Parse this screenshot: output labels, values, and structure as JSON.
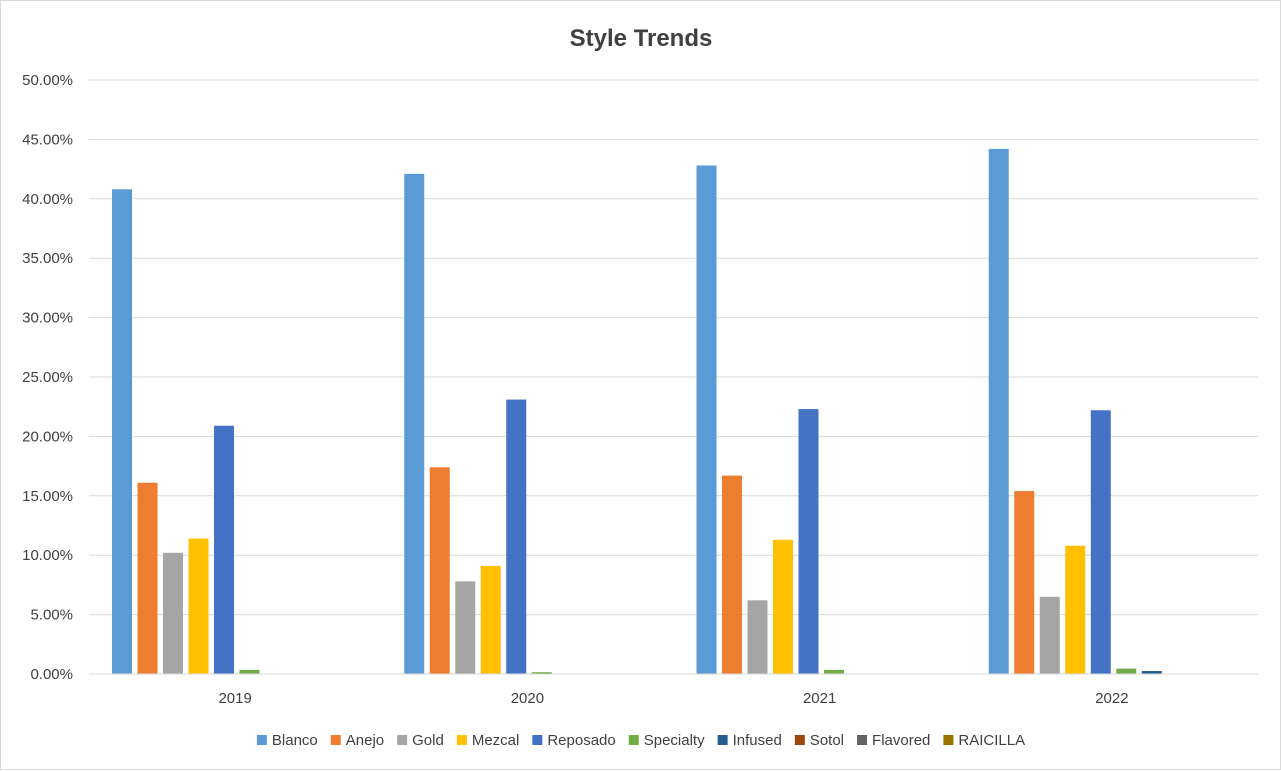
{
  "chart_data": {
    "type": "bar",
    "title": "Style Trends",
    "xlabel": "",
    "ylabel": "",
    "categories": [
      "2019",
      "2020",
      "2021",
      "2022"
    ],
    "ylim": [
      0,
      50
    ],
    "y_tick_values": [
      0,
      5,
      10,
      15,
      20,
      25,
      30,
      35,
      40,
      45,
      50
    ],
    "y_tick_labels": [
      "0.00%",
      "5.00%",
      "10.00%",
      "15.00%",
      "20.00%",
      "25.00%",
      "30.00%",
      "35.00%",
      "40.00%",
      "45.00%",
      "50.00%"
    ],
    "grid": true,
    "legend_position": "bottom",
    "series": [
      {
        "name": "Blanco",
        "color": "#5b9bd5",
        "values": [
          40.8,
          42.1,
          42.8,
          44.2
        ]
      },
      {
        "name": "Anejo",
        "color": "#ed7d31",
        "values": [
          16.1,
          17.4,
          16.7,
          15.4
        ]
      },
      {
        "name": "Gold",
        "color": "#a5a5a5",
        "values": [
          10.2,
          7.8,
          6.2,
          6.5
        ]
      },
      {
        "name": "Mezcal",
        "color": "#ffc000",
        "values": [
          11.4,
          9.1,
          11.3,
          10.8
        ]
      },
      {
        "name": "Reposado",
        "color": "#4472c4",
        "values": [
          20.9,
          23.1,
          22.3,
          22.2
        ]
      },
      {
        "name": "Specialty",
        "color": "#70ad47",
        "values": [
          0.35,
          0.15,
          0.35,
          0.45
        ]
      },
      {
        "name": "Infused",
        "color": "#255e91",
        "values": [
          0,
          0,
          0,
          0.25
        ]
      },
      {
        "name": "Sotol",
        "color": "#9e480e",
        "values": [
          0,
          0,
          0,
          0
        ]
      },
      {
        "name": "Flavored",
        "color": "#636363",
        "values": [
          0,
          0,
          0,
          0
        ]
      },
      {
        "name": "RAICILLA",
        "color": "#997300",
        "values": [
          0,
          0,
          0,
          0
        ]
      }
    ]
  }
}
